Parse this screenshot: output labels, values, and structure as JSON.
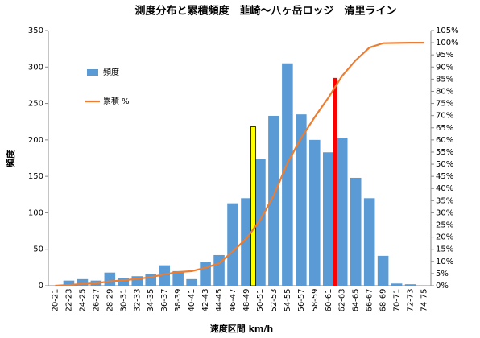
{
  "chart_data": {
    "type": "bar_line",
    "title": "測度分布と累積頻度　韮崎～八ヶ岳ロッジ　清里ライン",
    "x_label": "速度区間 km/h",
    "y_label": "頻度",
    "categories": [
      "20-21",
      "22-23",
      "24-25",
      "26-27",
      "28-29",
      "30-31",
      "32-33",
      "34-35",
      "36-37",
      "38-39",
      "40-41",
      "42-43",
      "44-45",
      "46-47",
      "48-49",
      "50-51",
      "52-53",
      "54-55",
      "56-57",
      "58-59",
      "60-61",
      "62-63",
      "64-65",
      "66-67",
      "68-69",
      "70-71",
      "72-73",
      "74-75"
    ],
    "series": [
      {
        "name": "頻度",
        "color": "#5b9bd5",
        "kind": "bar",
        "values": [
          0,
          7,
          9,
          7,
          18,
          10,
          13,
          16,
          28,
          20,
          9,
          32,
          42,
          113,
          120,
          174,
          233,
          305,
          235,
          200,
          183,
          203,
          148,
          120,
          41,
          3,
          2,
          0
        ]
      },
      {
        "name": "累積 %",
        "color": "#ed7d31",
        "kind": "line",
        "axis": "y2",
        "values": [
          0,
          0.3,
          0.7,
          1.0,
          1.8,
          2.2,
          2.8,
          3.5,
          4.7,
          5.6,
          6.0,
          7.4,
          9.2,
          14.1,
          19.4,
          27.0,
          37.1,
          50.5,
          60.7,
          69.4,
          77.4,
          86.3,
          92.8,
          98.0,
          99.8,
          99.9,
          100,
          100
        ]
      }
    ],
    "reference_marks": [
      {
        "between": [
          "48-49",
          "50-51"
        ],
        "value": 218,
        "color": "#ffff00"
      },
      {
        "between": [
          "60-61",
          "62-63"
        ],
        "value": 285,
        "color": "#ff0000"
      }
    ],
    "ylim": [
      0,
      350
    ],
    "yticks": [
      0,
      50,
      100,
      150,
      200,
      250,
      300,
      350
    ],
    "y2lim": [
      0,
      105
    ],
    "y2ticks": [
      {
        "value": 0,
        "label": "0%"
      },
      {
        "value": 5,
        "label": "5%"
      },
      {
        "value": 10,
        "label": "10%"
      },
      {
        "value": 15,
        "label": "15%"
      },
      {
        "value": 20,
        "label": "20%"
      },
      {
        "value": 25,
        "label": "25%"
      },
      {
        "value": 30,
        "label": "30%"
      },
      {
        "value": 35,
        "label": "35%"
      },
      {
        "value": 40,
        "label": "40%"
      },
      {
        "value": 45,
        "label": "45%"
      },
      {
        "value": 50,
        "label": "50%"
      },
      {
        "value": 55,
        "label": "55%"
      },
      {
        "value": 60,
        "label": "60%"
      },
      {
        "value": 65,
        "label": "65%"
      },
      {
        "value": 70,
        "label": "70%"
      },
      {
        "value": 75,
        "label": "75%"
      },
      {
        "value": 80,
        "label": "80%"
      },
      {
        "value": 85,
        "label": "85%"
      },
      {
        "value": 90,
        "label": "90%"
      },
      {
        "value": 95,
        "label": "95%"
      },
      {
        "value": 100,
        "label": "100%"
      },
      {
        "value": 105,
        "label": "105%"
      }
    ],
    "grid": false
  }
}
